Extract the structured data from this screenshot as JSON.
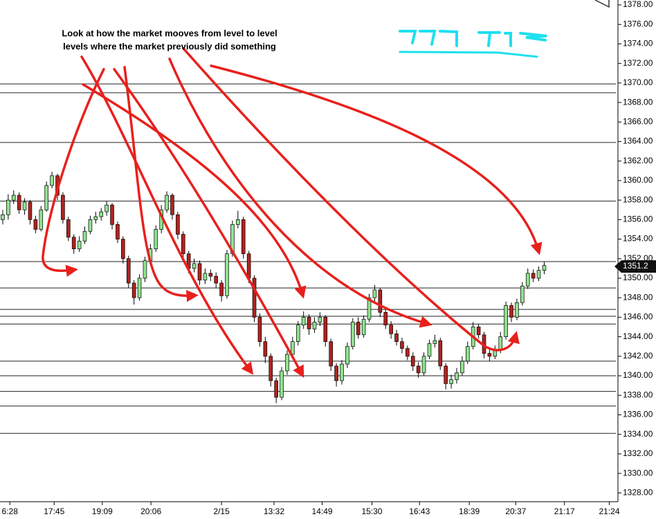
{
  "chart_data": {
    "type": "candlestick",
    "annotations": [
      "Look at how the market mooves from level to level",
      "levels where the market previously did something"
    ],
    "up_color": "#8fe38f",
    "down_color": "#b0231f",
    "open": [
      1356,
      1356.5,
      1358,
      1358.5,
      1357,
      1357.8,
      1356,
      1355,
      1357,
      1359.5,
      1360.5,
      1358.5,
      1356,
      1354.2,
      1353,
      1353.8,
      1354.8,
      1356,
      1356.3,
      1356.8,
      1357.5,
      1355.5,
      1354,
      1352,
      1349.5,
      1348,
      1350,
      1351.8,
      1353,
      1355,
      1357,
      1358.5,
      1356.5,
      1354.5,
      1352.5,
      1351,
      1351.5,
      1349.8,
      1350.5,
      1350.2,
      1349.5,
      1348.2,
      1352.5,
      1355.5,
      1356,
      1352.5,
      1350,
      1346,
      1343.5,
      1342,
      1339.5,
      1337.8,
      1340.5,
      1342.2,
      1343.5,
      1345.2,
      1346,
      1344.8,
      1345.5,
      1346,
      1343.5,
      1341,
      1339.5,
      1341.2,
      1343,
      1345.5,
      1344.2,
      1345.8,
      1348,
      1348.8,
      1346.5,
      1345.2,
      1344.3,
      1343.5,
      1342.8,
      1342,
      1341,
      1340.3,
      1342,
      1343.3,
      1343.6,
      1341,
      1339.2,
      1339.6,
      1340.3,
      1341.5,
      1343,
      1345,
      1344.2,
      1342.3,
      1342,
      1342.6,
      1344,
      1347.2,
      1346,
      1347.5,
      1349.2,
      1350.5,
      1350,
      1350.8
    ],
    "high": [
      1357,
      1358.6,
      1359,
      1358.8,
      1358.2,
      1358,
      1356.4,
      1357.4,
      1359.9,
      1360.9,
      1360.7,
      1358.8,
      1356.3,
      1354.5,
      1354.3,
      1355.3,
      1356.4,
      1356.8,
      1357.2,
      1357.9,
      1357.7,
      1355.8,
      1354.3,
      1352.3,
      1349.8,
      1350.4,
      1352.2,
      1353.5,
      1355.4,
      1357.5,
      1358.9,
      1358.7,
      1356.8,
      1354.8,
      1352.8,
      1352,
      1351.8,
      1351,
      1350.9,
      1350.6,
      1349.8,
      1352.9,
      1355.9,
      1356.9,
      1356.3,
      1352.8,
      1350.3,
      1346.4,
      1344,
      1342.3,
      1339.8,
      1340.9,
      1342.6,
      1344,
      1345.6,
      1346.6,
      1346.3,
      1346,
      1346.5,
      1346.2,
      1343.8,
      1341.3,
      1341.6,
      1343.4,
      1345.9,
      1346,
      1346.2,
      1348.4,
      1349.3,
      1349,
      1346.8,
      1345.6,
      1344.7,
      1343.9,
      1343.1,
      1342.4,
      1341.4,
      1342.4,
      1343.7,
      1344.2,
      1343.9,
      1341.3,
      1340.1,
      1340.8,
      1342,
      1343.5,
      1345.5,
      1345.3,
      1344.5,
      1342.8,
      1343.1,
      1344.5,
      1347.6,
      1347.5,
      1347.9,
      1349.6,
      1351,
      1350.9,
      1351.2,
      1351.7
    ],
    "low": [
      1355.5,
      1356,
      1357.6,
      1356.6,
      1356.5,
      1355.5,
      1354.6,
      1354.8,
      1356.8,
      1359.2,
      1358,
      1355.6,
      1353.8,
      1352.5,
      1352.7,
      1353.5,
      1354.5,
      1355.6,
      1355.9,
      1356.4,
      1355,
      1353.6,
      1351.5,
      1349,
      1347.3,
      1347.7,
      1349.6,
      1351.4,
      1352.7,
      1354.6,
      1356.7,
      1356,
      1354,
      1352,
      1350.5,
      1350.6,
      1349.3,
      1349.4,
      1349.7,
      1349,
      1347.6,
      1347.9,
      1352.2,
      1355.1,
      1352,
      1349.5,
      1345.5,
      1343,
      1341.3,
      1338.9,
      1337.2,
      1337.5,
      1340.1,
      1341.8,
      1343.1,
      1344.8,
      1344.2,
      1344.4,
      1345.1,
      1343,
      1340.5,
      1338.9,
      1339.1,
      1340.8,
      1342.7,
      1343.8,
      1343.9,
      1345.5,
      1347.6,
      1346,
      1344.8,
      1343.8,
      1343.1,
      1342.3,
      1341.6,
      1340.5,
      1339.8,
      1340,
      1341.7,
      1342.9,
      1340.6,
      1338.6,
      1338.7,
      1339.2,
      1340,
      1341.2,
      1342.7,
      1343.8,
      1341.8,
      1341.5,
      1341.7,
      1342.3,
      1343.7,
      1345.5,
      1345.7,
      1347.2,
      1348.9,
      1349.6,
      1349.7,
      1350.4
    ],
    "close": [
      1356.5,
      1358,
      1358.5,
      1357,
      1357.8,
      1356,
      1355,
      1357,
      1359.5,
      1360.5,
      1358.5,
      1356,
      1354.2,
      1353,
      1353.8,
      1354.8,
      1356,
      1356.3,
      1356.8,
      1357.5,
      1355.5,
      1354,
      1352,
      1349.5,
      1348,
      1350,
      1351.8,
      1353,
      1355,
      1357,
      1358.5,
      1356.5,
      1354.5,
      1352.5,
      1351,
      1351.5,
      1349.8,
      1350.5,
      1350.2,
      1349.5,
      1348.2,
      1352.5,
      1355.5,
      1356,
      1352.5,
      1350,
      1346,
      1343.5,
      1342,
      1339.5,
      1337.8,
      1340.5,
      1342.2,
      1343.5,
      1345.2,
      1346,
      1344.8,
      1345.5,
      1346,
      1343.5,
      1341,
      1339.5,
      1341.2,
      1343,
      1345.5,
      1344.2,
      1345.8,
      1348,
      1348.8,
      1346.5,
      1345.2,
      1344.3,
      1343.5,
      1342.8,
      1342,
      1341,
      1340.3,
      1342,
      1343.3,
      1343.6,
      1341,
      1339.2,
      1339.6,
      1340.3,
      1341.5,
      1343,
      1345,
      1344.2,
      1342.3,
      1342,
      1342.6,
      1344,
      1347.2,
      1346,
      1347.5,
      1349.2,
      1350.5,
      1350,
      1350.8,
      1351.3
    ],
    "levels": [
      1369.9,
      1369,
      1363.9,
      1357.9,
      1351.7,
      1349,
      1346.8,
      1346.1,
      1345.3,
      1341.5,
      1340,
      1338.4,
      1336.9,
      1334.1
    ],
    "last_price": {
      "value": 1351.2,
      "label": "1351.2"
    },
    "xlim": [
      0,
      112.6
    ],
    "ylim": [
      1327.1,
      1378.5
    ],
    "xticks": [
      {
        "value": 1.8,
        "label": "6:28"
      },
      {
        "value": 9.9,
        "label": "17:45"
      },
      {
        "value": 18.7,
        "label": "19:09"
      },
      {
        "value": 27.6,
        "label": "20:06"
      },
      {
        "value": 40.5,
        "label": "2/15"
      },
      {
        "value": 50.1,
        "label": "13:32"
      },
      {
        "value": 58.9,
        "label": "14:49"
      },
      {
        "value": 68,
        "label": "15:30"
      },
      {
        "value": 76.7,
        "label": "16:43"
      },
      {
        "value": 85.8,
        "label": "18:39"
      },
      {
        "value": 94.3,
        "label": "20:37"
      },
      {
        "value": 103.2,
        "label": "21:17"
      },
      {
        "value": 111.4,
        "label": "21:24"
      }
    ],
    "yticks": [
      {
        "value": 1378,
        "label": "1378.00"
      },
      {
        "value": 1376,
        "label": "1376.00"
      },
      {
        "value": 1374,
        "label": "1374.00"
      },
      {
        "value": 1372,
        "label": "1372.00"
      },
      {
        "value": 1370,
        "label": "1370.00"
      },
      {
        "value": 1368,
        "label": "1368.00"
      },
      {
        "value": 1366,
        "label": "1366.00"
      },
      {
        "value": 1364,
        "label": "1364.00"
      },
      {
        "value": 1362,
        "label": "1362.00"
      },
      {
        "value": 1360,
        "label": "1360.00"
      },
      {
        "value": 1358,
        "label": "1358.00"
      },
      {
        "value": 1356,
        "label": "1356.00"
      },
      {
        "value": 1354,
        "label": "1354.00"
      },
      {
        "value": 1352,
        "label": "1352.00"
      },
      {
        "value": 1350,
        "label": "1350.00"
      },
      {
        "value": 1348,
        "label": "1348.00"
      },
      {
        "value": 1346,
        "label": "1346.00"
      },
      {
        "value": 1344,
        "label": "1344.00"
      },
      {
        "value": 1342,
        "label": "1342.00"
      },
      {
        "value": 1340,
        "label": "1340.00"
      },
      {
        "value": 1338,
        "label": "1338.00"
      },
      {
        "value": 1336,
        "label": "1336.00"
      },
      {
        "value": 1334,
        "label": "1334.00"
      },
      {
        "value": 1332,
        "label": "1332.00"
      },
      {
        "value": 1330,
        "label": "1330.00"
      },
      {
        "value": 1328,
        "label": "1328.00"
      }
    ]
  }
}
